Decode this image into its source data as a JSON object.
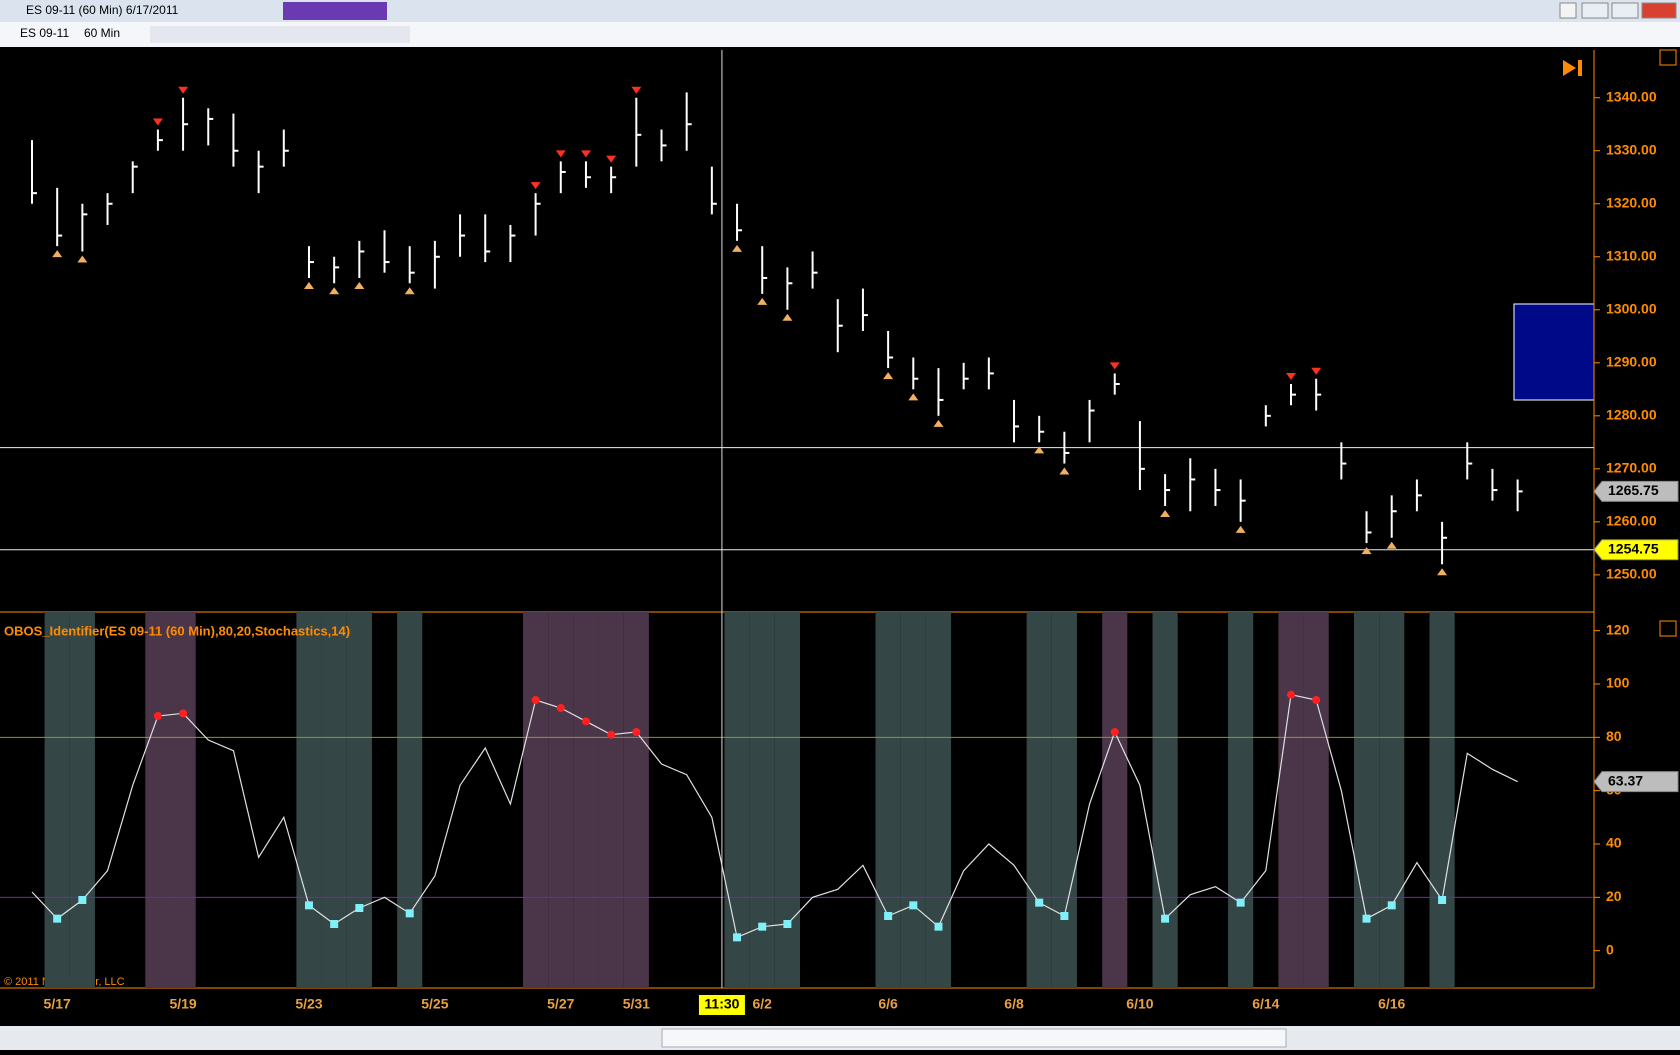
{
  "window": {
    "title": "ES 09-11 (60 Min)  6/17/2011",
    "instrument": "ES 09-11",
    "interval": "60 Min",
    "copyright": "© 2011 NinjaTrader, LLC"
  },
  "chart_data": [
    {
      "type": "ohlc",
      "categories": [
        null,
        "5/17",
        null,
        null,
        null,
        null,
        "5/19",
        null,
        null,
        null,
        null,
        "5/23",
        null,
        null,
        null,
        null,
        "5/25",
        null,
        null,
        null,
        null,
        "5/27",
        null,
        null,
        "5/31",
        null,
        null,
        null,
        null,
        "6/2",
        null,
        null,
        null,
        null,
        "6/6",
        null,
        null,
        null,
        null,
        "6/8",
        null,
        null,
        null,
        null,
        "6/10",
        null,
        null,
        null,
        null,
        "6/14",
        null,
        null,
        null,
        null,
        "6/16",
        null,
        null,
        null,
        null,
        null
      ],
      "high": [
        1332,
        1323,
        1320,
        1322,
        1328,
        1334,
        1340,
        1338,
        1337,
        1330,
        1334,
        1312,
        1310,
        1313,
        1315,
        1312,
        1313,
        1318,
        1318,
        1316,
        1322,
        1328,
        1328,
        1327,
        1340,
        1334,
        1341,
        1327,
        1320,
        1312,
        1308,
        1311,
        1302,
        1304,
        1296,
        1291,
        1289,
        1290,
        1291,
        1283,
        1280,
        1277,
        1283,
        1288,
        1279,
        1269,
        1272,
        1270,
        1268,
        1282,
        1286,
        1287,
        1275,
        1262,
        1265,
        1268,
        1260,
        1275,
        1270,
        1268
      ],
      "low": [
        1320,
        1312,
        1311,
        1316,
        1322,
        1330,
        1330,
        1331,
        1327,
        1322,
        1327,
        1306,
        1305,
        1306,
        1307,
        1305,
        1304,
        1310,
        1309,
        1309,
        1314,
        1322,
        1323,
        1322,
        1327,
        1328,
        1330,
        1318,
        1313,
        1303,
        1300,
        1304,
        1292,
        1296,
        1289,
        1285,
        1280,
        1285,
        1285,
        1275,
        1275,
        1271,
        1275,
        1284,
        1266,
        1263,
        1262,
        1263,
        1260,
        1278,
        1282,
        1281,
        1268,
        1256,
        1257,
        1262,
        1252,
        1268,
        1264,
        1262
      ],
      "close": [
        1322,
        1314,
        1318,
        1320,
        1327,
        1332,
        1335,
        1336,
        1330,
        1327,
        1330,
        1309,
        1308,
        1311,
        1309,
        1307,
        1310,
        1314,
        1311,
        1314,
        1320,
        1326,
        1325,
        1325,
        1333,
        1331,
        1335,
        1320,
        1315,
        1306,
        1305,
        1307,
        1297,
        1299,
        1291,
        1287,
        1283,
        1287,
        1288,
        1278,
        1277,
        1273,
        1281,
        1286,
        1270,
        1266,
        1268,
        1266,
        1264,
        1280,
        1284,
        1284,
        1271,
        1258,
        1262,
        1265,
        1257,
        1271,
        1266,
        1265.75
      ],
      "ylim": [
        1243,
        1349
      ],
      "yticks": [
        {
          "value": 1250,
          "label": "1250.00"
        },
        {
          "value": 1260,
          "label": "1260.00"
        },
        {
          "value": 1270,
          "label": "1270.00"
        },
        {
          "value": 1280,
          "label": "1280.00"
        },
        {
          "value": 1290,
          "label": "1290.00"
        },
        {
          "value": 1300,
          "label": "1300.00"
        },
        {
          "value": 1310,
          "label": "1310.00"
        },
        {
          "value": 1320,
          "label": "1320.00"
        },
        {
          "value": 1330,
          "label": "1330.00"
        },
        {
          "value": 1340,
          "label": "1340.00"
        }
      ],
      "color": "#ffffff",
      "hline": 1254.75,
      "crosshair": {
        "label": "11:30",
        "x": 27.4,
        "y": 1274
      }
    },
    {
      "type": "line",
      "title": "OBOS_Identifier(ES 09-11 (60 Min),80,20,Stochastics,14)",
      "values": [
        22,
        12,
        19,
        30,
        62,
        88,
        89,
        79,
        75,
        35,
        50,
        17,
        10,
        16,
        20,
        14,
        28,
        62,
        76,
        55,
        94,
        91,
        86,
        81,
        82,
        70,
        66,
        50,
        5,
        9,
        10,
        20,
        23,
        32,
        13,
        17,
        9,
        30,
        40,
        32,
        18,
        13,
        55,
        82,
        62,
        12,
        21,
        24,
        18,
        30,
        96,
        94,
        60,
        12,
        17,
        33,
        19,
        74,
        68,
        63.37
      ],
      "color": "#e0e0e0",
      "overbought": 80,
      "oversold": 20,
      "ylim": [
        -14,
        127
      ],
      "yticks": [
        0,
        20,
        40,
        60,
        80,
        100,
        120
      ]
    }
  ]
}
